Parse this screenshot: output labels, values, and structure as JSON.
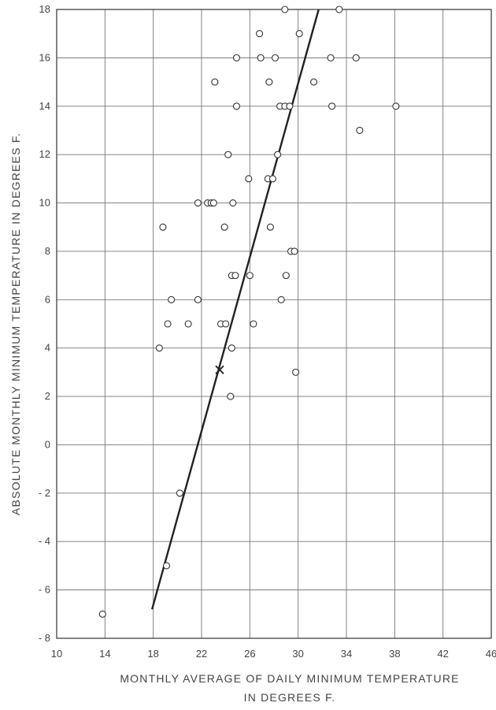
{
  "chart_data": {
    "type": "scatter",
    "title": "",
    "xlabel_lines": [
      "MONTHLY AVERAGE OF DAILY MINIMUM TEMPERATURE",
      "IN DEGREES F."
    ],
    "ylabel": "ABSOLUTE MONTHLY MINIMUM TEMPERATURE IN DEGREES F.",
    "xlim": [
      10,
      46
    ],
    "ylim": [
      -8,
      18
    ],
    "x_ticks": [
      "10",
      "14",
      "18",
      "22",
      "26",
      "30",
      "34",
      "38",
      "42",
      "46"
    ],
    "y_ticks": [
      "-8",
      "-6",
      "-4",
      "-2",
      "0",
      "2",
      "4",
      "6",
      "8",
      "10",
      "12",
      "14",
      "16",
      "18"
    ],
    "grid": true,
    "series": [
      {
        "marker": "circle",
        "points": [
          [
            13.8,
            -7
          ],
          [
            19.1,
            -5
          ],
          [
            20.2,
            -2
          ],
          [
            24.4,
            2
          ],
          [
            29.8,
            3
          ],
          [
            18.5,
            4
          ],
          [
            24.5,
            4
          ],
          [
            19.2,
            5
          ],
          [
            20.9,
            5
          ],
          [
            23.6,
            5
          ],
          [
            24.0,
            5
          ],
          [
            26.3,
            5
          ],
          [
            19.5,
            6
          ],
          [
            21.7,
            6
          ],
          [
            28.6,
            6
          ],
          [
            24.5,
            7
          ],
          [
            24.8,
            7
          ],
          [
            26.0,
            7
          ],
          [
            29.0,
            7
          ],
          [
            23.9,
            9
          ],
          [
            27.7,
            9
          ],
          [
            18.8,
            9
          ],
          [
            29.4,
            8
          ],
          [
            29.7,
            8
          ],
          [
            21.7,
            10
          ],
          [
            22.5,
            10
          ],
          [
            22.8,
            10
          ],
          [
            23.0,
            10
          ],
          [
            24.6,
            10
          ],
          [
            25.9,
            11
          ],
          [
            27.5,
            11
          ],
          [
            27.9,
            11
          ],
          [
            24.2,
            12
          ],
          [
            28.3,
            12
          ],
          [
            23.1,
            15
          ],
          [
            27.6,
            15
          ],
          [
            31.3,
            15
          ],
          [
            35.1,
            13
          ],
          [
            24.9,
            14
          ],
          [
            28.5,
            14
          ],
          [
            28.9,
            14
          ],
          [
            29.3,
            14
          ],
          [
            32.8,
            14
          ],
          [
            38.1,
            14
          ],
          [
            24.9,
            16
          ],
          [
            26.9,
            16
          ],
          [
            28.1,
            16
          ],
          [
            32.7,
            16
          ],
          [
            34.8,
            16
          ],
          [
            26.8,
            17
          ],
          [
            30.1,
            17
          ],
          [
            28.9,
            18
          ],
          [
            33.4,
            18
          ]
        ]
      },
      {
        "marker": "x",
        "points": [
          [
            23.5,
            3.1
          ]
        ]
      }
    ],
    "trend_line": {
      "x": [
        17.9,
        31.7
      ],
      "y": [
        -6.8,
        18
      ]
    }
  }
}
